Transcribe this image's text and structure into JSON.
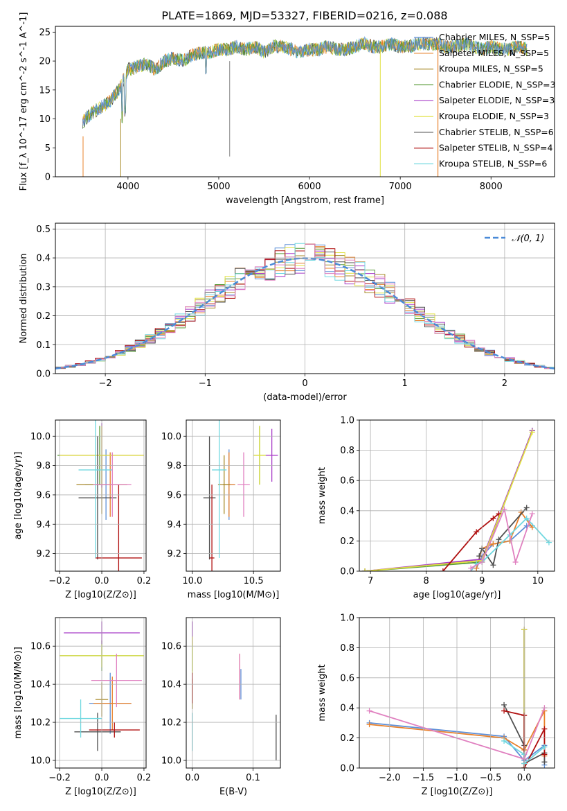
{
  "title": "PLATE=1869, MJD=53327, FIBERID=0216, z=0.088",
  "colors": {
    "c0": "#5f90d8",
    "c1": "#e8802a",
    "c2": "#a88a28",
    "c3": "#5a9c3a",
    "c4": "#a83cc8",
    "c5": "#e0e040",
    "c6": "#505050",
    "c7": "#b01010",
    "c8": "#70d8e0",
    "c9": "#e080c0",
    "gauss": "#4a8ad8"
  },
  "legend": [
    "Chabrier MILES, N_SSP=5",
    "Salpeter MILES, N_SSP=5",
    "Kroupa MILES, N_SSP=5",
    "Chabrier ELODIE, N_SSP=3",
    "Salpeter ELODIE, N_SSP=3",
    "Kroupa ELODIE, N_SSP=3",
    "Chabrier STELIB, N_SSP=6",
    "Salpeter STELIB, N_SSP=4",
    "Kroupa STELIB, N_SSP=6"
  ],
  "gauss_label": "𝒩(0, 1)",
  "chart_data": [
    {
      "id": "spec",
      "type": "line",
      "title": "PLATE=1869, MJD=53327, FIBERID=0216, z=0.088",
      "xlabel": "wavelength [Angstrom, rest frame]",
      "ylabel": "Flux [f_λ 10^-17 erg cm^-2 s^-1 A^-1]",
      "xlim": [
        3200,
        8700
      ],
      "ylim": [
        0,
        26
      ],
      "xticks": [
        4000,
        5000,
        6000,
        7000,
        8000
      ],
      "yticks": [
        0,
        5,
        10,
        15,
        20,
        25
      ],
      "grid": false,
      "legend_loc": "upper right",
      "x": [
        3500,
        3600,
        3700,
        3800,
        3900,
        4000,
        4100,
        4200,
        4300,
        4400,
        4500,
        4600,
        4700,
        4800,
        4900,
        5000,
        5100,
        5200,
        5300,
        5400,
        5500,
        5600,
        5700,
        5800,
        5900,
        6000,
        6100,
        6200,
        6300,
        6400,
        6500,
        6600,
        6700,
        6800,
        6900,
        7000,
        7100,
        7200,
        7300,
        7400,
        7500,
        7600,
        7700,
        7800,
        7900,
        8000,
        8100,
        8200,
        8300,
        8400
      ],
      "y": [
        9.5,
        11,
        12,
        13,
        15,
        18.5,
        19,
        19.5,
        18.5,
        20,
        20.5,
        20,
        21,
        21.5,
        21.5,
        22,
        22,
        22.5,
        22,
        22.5,
        21.5,
        22.5,
        22.5,
        22,
        21.5,
        22,
        22,
        22.5,
        22,
        22,
        22.5,
        23,
        22.5,
        22.5,
        23,
        22.5,
        22.5,
        23,
        23,
        23,
        22.5,
        22.5,
        23,
        22.5,
        22,
        22.5,
        22,
        22,
        22.5,
        22
      ]
    },
    {
      "id": "hist",
      "type": "line",
      "xlabel": "(data-model)/error",
      "ylabel": "Normed distribution",
      "xlim": [
        -2.5,
        2.5
      ],
      "ylim": [
        0,
        0.52
      ],
      "xticks": [
        -2,
        -1,
        0,
        1,
        2
      ],
      "yticks": [
        0.0,
        0.1,
        0.2,
        0.3,
        0.4,
        0.5
      ],
      "grid": true,
      "legend": [
        "𝒩(0, 1)"
      ],
      "legend_loc": "upper right"
    },
    {
      "id": "age_z",
      "type": "scatter",
      "xlabel": "Z [log10(Z/Z⊙)]",
      "ylabel": "age [log10(age/yr)]",
      "xlim": [
        -0.22,
        0.21
      ],
      "ylim": [
        9.08,
        10.11
      ],
      "xticks": [
        -0.2,
        0.0,
        0.2
      ],
      "yticks": [
        9.2,
        9.4,
        9.6,
        9.8,
        10.0
      ],
      "grid": true,
      "points": [
        {
          "x": 0.02,
          "y": 9.67,
          "xerr": 0.1,
          "yerr": 0.24
        },
        {
          "x": 0.04,
          "y": 9.67,
          "xerr": 0.08,
          "yerr": 0.22
        },
        {
          "x": 0.0,
          "y": 9.67,
          "xerr": 0.12,
          "yerr": 0.2
        },
        {
          "x": -0.01,
          "y": 9.87,
          "xerr": 0.2,
          "yerr": 0.2
        },
        {
          "x": 0.0,
          "y": 9.87,
          "xerr": 0.2,
          "yerr": 0.22
        },
        {
          "x": 0.0,
          "y": 9.87,
          "xerr": 0.2,
          "yerr": 0.2
        },
        {
          "x": -0.02,
          "y": 9.58,
          "xerr": 0.09,
          "yerr": 0.42
        },
        {
          "x": 0.08,
          "y": 9.17,
          "xerr": 0.11,
          "yerr": 0.5
        },
        {
          "x": -0.03,
          "y": 9.77,
          "xerr": 0.08,
          "yerr": 0.6
        },
        {
          "x": 0.05,
          "y": 9.67,
          "xerr": 0.09,
          "yerr": 0.22
        }
      ]
    },
    {
      "id": "age_mass",
      "type": "scatter",
      "xlabel": "mass [log10(M/M⊙)]",
      "ylabel": "",
      "xlim": [
        9.95,
        10.72
      ],
      "ylim": [
        9.08,
        10.11
      ],
      "xticks": [
        10.0,
        10.5
      ],
      "yticks": [
        9.2,
        9.4,
        9.6,
        9.8,
        10.0
      ],
      "grid": true,
      "points": [
        {
          "x": 10.3,
          "y": 9.67,
          "xerr": 0.05,
          "yerr": 0.24
        },
        {
          "x": 10.3,
          "y": 9.67,
          "xerr": 0.05,
          "yerr": 0.22
        },
        {
          "x": 10.26,
          "y": 9.67,
          "xerr": 0.05,
          "yerr": 0.2
        },
        {
          "x": 10.55,
          "y": 9.87,
          "xerr": 0.05,
          "yerr": 0.2
        },
        {
          "x": 10.65,
          "y": 9.87,
          "xerr": 0.05,
          "yerr": 0.18
        },
        {
          "x": 10.55,
          "y": 9.87,
          "xerr": 0.05,
          "yerr": 0.2
        },
        {
          "x": 10.14,
          "y": 9.58,
          "xerr": 0.05,
          "yerr": 0.42
        },
        {
          "x": 10.16,
          "y": 9.17,
          "xerr": 0.02,
          "yerr": 0.5
        },
        {
          "x": 10.22,
          "y": 9.77,
          "xerr": 0.06,
          "yerr": 0.6
        },
        {
          "x": 10.42,
          "y": 9.67,
          "xerr": 0.05,
          "yerr": 0.22
        }
      ]
    },
    {
      "id": "mw_age",
      "type": "line",
      "xlabel": "age [log10(age/yr)]",
      "ylabel": "mass weight",
      "xlim": [
        6.8,
        10.3
      ],
      "ylim": [
        0,
        1
      ],
      "xticks": [
        7,
        8,
        9,
        10
      ],
      "yticks": [
        0.0,
        0.2,
        0.4,
        0.6,
        0.8,
        1.0
      ],
      "grid": true,
      "series": [
        {
          "x": [
            8.9,
            9.0,
            9.2,
            9.5,
            9.8,
            9.9
          ],
          "y": [
            0.02,
            0.1,
            0.18,
            0.2,
            0.3,
            0.3
          ]
        },
        {
          "x": [
            8.9,
            9.0,
            9.2,
            9.5,
            9.7,
            9.9
          ],
          "y": [
            0.02,
            0.15,
            0.18,
            0.2,
            0.39,
            0.29
          ]
        },
        {
          "x": [
            6.9,
            9.0,
            9.9
          ],
          "y": [
            0.0,
            0.07,
            0.93
          ]
        },
        {
          "x": [
            6.9,
            9.0,
            9.9
          ],
          "y": [
            0.0,
            0.06,
            0.93
          ]
        },
        {
          "x": [
            6.9,
            9.0,
            9.9
          ],
          "y": [
            0.0,
            0.08,
            0.93
          ]
        },
        {
          "x": [
            6.9,
            9.0,
            9.9
          ],
          "y": [
            0.0,
            0.07,
            0.92
          ]
        },
        {
          "x": [
            8.95,
            9.0,
            9.2,
            9.3,
            9.8
          ],
          "y": [
            0.1,
            0.15,
            0.04,
            0.21,
            0.42
          ]
        },
        {
          "x": [
            8.3,
            8.9,
            9.2,
            9.3
          ],
          "y": [
            0.0,
            0.26,
            0.35,
            0.38
          ]
        },
        {
          "x": [
            8.8,
            8.9,
            9.0,
            9.5,
            9.8,
            10.2
          ],
          "y": [
            0.0,
            0.05,
            0.06,
            0.24,
            0.35,
            0.19
          ]
        },
        {
          "x": [
            8.8,
            9.0,
            9.4,
            9.6,
            9.9
          ],
          "y": [
            0.02,
            0.06,
            0.41,
            0.06,
            0.38
          ]
        }
      ]
    },
    {
      "id": "mass_z",
      "type": "scatter",
      "xlabel": "Z [log10(Z/Z⊙)]",
      "ylabel": "mass [log10(M/M⊙)]",
      "xlim": [
        -0.22,
        0.21
      ],
      "ylim": [
        9.96,
        10.75
      ],
      "xticks": [
        -0.2,
        0.0,
        0.2
      ],
      "yticks": [
        10.0,
        10.2,
        10.4,
        10.6
      ],
      "grid": true,
      "points": [
        {
          "x": 0.04,
          "y": 10.3,
          "xerr": 0.1,
          "yerr": 0.16
        },
        {
          "x": 0.05,
          "y": 10.3,
          "xerr": 0.09,
          "yerr": 0.14
        },
        {
          "x": 0.0,
          "y": 10.32,
          "xerr": 0.03,
          "yerr": 0.09
        },
        {
          "x": 0.0,
          "y": 10.55,
          "xerr": 0.2,
          "yerr": 0.08
        },
        {
          "x": 0.0,
          "y": 10.67,
          "xerr": 0.18,
          "yerr": 0.06
        },
        {
          "x": 0.0,
          "y": 10.55,
          "xerr": 0.2,
          "yerr": 0.06
        },
        {
          "x": -0.02,
          "y": 10.15,
          "xerr": 0.11,
          "yerr": 0.1
        },
        {
          "x": 0.06,
          "y": 10.16,
          "xerr": 0.12,
          "yerr": 0.04
        },
        {
          "x": -0.1,
          "y": 10.22,
          "xerr": 0.1,
          "yerr": 0.1
        },
        {
          "x": 0.07,
          "y": 10.42,
          "xerr": 0.12,
          "yerr": 0.14
        }
      ]
    },
    {
      "id": "mass_ebv",
      "type": "scatter",
      "xlabel": "E(B-V)",
      "ylabel": "",
      "xlim": [
        -0.01,
        0.145
      ],
      "ylim": [
        9.96,
        10.75
      ],
      "xticks": [
        0.0,
        0.1
      ],
      "yticks": [
        10.0,
        10.2,
        10.4,
        10.6
      ],
      "grid": true,
      "points": [
        {
          "x": 0.08,
          "y": 10.4,
          "yerr": 0.08
        },
        {
          "x": 0.078,
          "y": 10.44,
          "yerr": 0.12
        },
        {
          "x": 0.0,
          "y": 10.35,
          "yerr": 0.08
        },
        {
          "x": 0.0,
          "y": 10.55,
          "yerr": 0.08
        },
        {
          "x": 0.0,
          "y": 10.67,
          "yerr": 0.06
        },
        {
          "x": 0.0,
          "y": 10.55,
          "yerr": 0.1
        },
        {
          "x": 0.138,
          "y": 10.12,
          "yerr": 0.12
        },
        {
          "x": 0.0,
          "y": 10.38,
          "yerr": 0.08
        },
        {
          "x": 0.0,
          "y": 10.15,
          "yerr": 0.1
        },
        {
          "x": 0.078,
          "y": 10.44,
          "yerr": 0.12
        }
      ]
    },
    {
      "id": "mw_z",
      "type": "line",
      "xlabel": "Z [log10(Z/Z⊙)]",
      "ylabel": "mass weight",
      "xlim": [
        -2.45,
        0.45
      ],
      "ylim": [
        0,
        1
      ],
      "xticks": [
        -2.0,
        -1.5,
        -1.0,
        -0.5,
        0.0
      ],
      "yticks": [
        0.0,
        0.2,
        0.4,
        0.6,
        0.8,
        1.0
      ],
      "grid": true,
      "series": [
        {
          "x": [
            -2.3,
            -0.3,
            0.0,
            0.3,
            0.3
          ],
          "y": [
            0.3,
            0.21,
            0.05,
            0.15,
            0.02
          ]
        },
        {
          "x": [
            -2.3,
            -0.3,
            0.0,
            0.3,
            0.3
          ],
          "y": [
            0.29,
            0.2,
            0.12,
            0.38,
            0.08
          ]
        },
        {
          "x": [
            0.0,
            0.0
          ],
          "y": [
            0.0,
            0.92
          ]
        },
        {
          "x": [
            0.0,
            0.0
          ],
          "y": [
            0.0,
            0.92
          ]
        },
        {
          "x": [
            0.0,
            0.0
          ],
          "y": [
            0.0,
            0.92
          ]
        },
        {
          "x": [
            0.0,
            0.0
          ],
          "y": [
            0.0,
            0.92
          ]
        },
        {
          "x": [
            -0.3,
            0.0,
            0.0,
            0.3,
            0.3
          ],
          "y": [
            0.42,
            0.15,
            0.03,
            0.1,
            0.04
          ]
        },
        {
          "x": [
            -0.3,
            0.0,
            0.0,
            0.3,
            0.3
          ],
          "y": [
            0.38,
            0.35,
            0.0,
            0.26,
            0.09
          ]
        },
        {
          "x": [
            -0.3,
            0.0,
            0.0,
            0.3
          ],
          "y": [
            0.18,
            0.09,
            0.03,
            0.14
          ]
        },
        {
          "x": [
            -2.3,
            0.0,
            0.3
          ],
          "y": [
            0.38,
            0.06,
            0.4
          ]
        }
      ]
    }
  ]
}
